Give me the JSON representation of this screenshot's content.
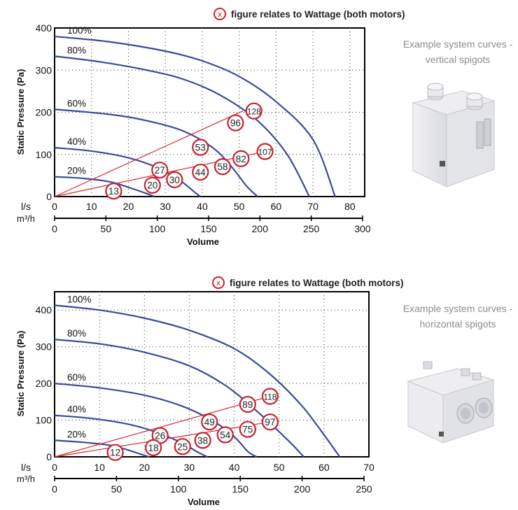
{
  "chart_data": [
    {
      "type": "line",
      "legend_symbol": "x",
      "legend_text": "figure relates to Wattage (both motors)",
      "ylabel": "Static Pressure (Pa)",
      "xlabel": "Volume",
      "x_unit_primary": "l/s",
      "x_unit_secondary": "m³/h",
      "xlim": [
        0,
        84
      ],
      "ylim": [
        0,
        400
      ],
      "x_ticks": [
        "0",
        "10",
        "20",
        "30",
        "40",
        "50",
        "60",
        "70",
        "80"
      ],
      "y_ticks": [
        "0",
        "100",
        "200",
        "300",
        "400"
      ],
      "x2_ticks": [
        "0",
        "50",
        "100",
        "150",
        "200",
        "250",
        "300"
      ],
      "grid": "dotted",
      "series_color": "#3a4a9a",
      "series": [
        {
          "name": "100%",
          "points": [
            [
              0,
              380
            ],
            [
              15,
              367
            ],
            [
              30,
              345
            ],
            [
              40,
              322
            ],
            [
              50,
              285
            ],
            [
              60,
              225
            ],
            [
              70,
              135
            ],
            [
              76,
              0
            ]
          ]
        },
        {
          "name": "80%",
          "points": [
            [
              0,
              333
            ],
            [
              12,
              320
            ],
            [
              25,
              300
            ],
            [
              35,
              278
            ],
            [
              45,
              240
            ],
            [
              55,
              180
            ],
            [
              63,
              100
            ],
            [
              69,
              0
            ]
          ]
        },
        {
          "name": "60%",
          "points": [
            [
              0,
              207
            ],
            [
              15,
              195
            ],
            [
              25,
              180
            ],
            [
              35,
              155
            ],
            [
              43,
              115
            ],
            [
              48,
              70
            ],
            [
              52,
              25
            ],
            [
              55,
              0
            ]
          ]
        },
        {
          "name": "40%",
          "points": [
            [
              0,
              116
            ],
            [
              10,
              108
            ],
            [
              20,
              92
            ],
            [
              28,
              68
            ],
            [
              34,
              38
            ],
            [
              38,
              10
            ],
            [
              39.5,
              0
            ]
          ]
        },
        {
          "name": "20%",
          "points": [
            [
              0,
              47
            ],
            [
              8,
              43
            ],
            [
              15,
              35
            ],
            [
              20,
              22
            ],
            [
              25,
              7
            ],
            [
              27,
              0
            ]
          ]
        }
      ],
      "wattage_lines": [
        {
          "from": [
            0,
            0
          ],
          "to": [
            51,
            203
          ]
        },
        {
          "from": [
            0,
            0
          ],
          "to": [
            57,
            107
          ]
        }
      ],
      "wattage_markers": [
        {
          "label": "13",
          "x": 16,
          "y": 13
        },
        {
          "label": "27",
          "x": 28.5,
          "y": 63
        },
        {
          "label": "20",
          "x": 26.5,
          "y": 27
        },
        {
          "label": "30",
          "x": 32.5,
          "y": 40
        },
        {
          "label": "53",
          "x": 39.5,
          "y": 117
        },
        {
          "label": "44",
          "x": 39.5,
          "y": 58
        },
        {
          "label": "96",
          "x": 49,
          "y": 175
        },
        {
          "label": "128",
          "x": 54,
          "y": 203
        },
        {
          "label": "58",
          "x": 45.5,
          "y": 71
        },
        {
          "label": "82",
          "x": 50.5,
          "y": 90
        },
        {
          "label": "107",
          "x": 57,
          "y": 107
        }
      ],
      "side_caption": [
        "Example system curves -",
        "vertical spigots"
      ]
    },
    {
      "type": "line",
      "legend_symbol": "x",
      "legend_text": "figure relates to Wattage (both motors)",
      "ylabel": "Static Pressure (Pa)",
      "xlabel": "Volume",
      "x_unit_primary": "l/s",
      "x_unit_secondary": "m³/h",
      "xlim": [
        0,
        70
      ],
      "ylim": [
        0,
        450
      ],
      "x_ticks": [
        "0",
        "10",
        "20",
        "30",
        "40",
        "50",
        "60",
        "70"
      ],
      "y_ticks": [
        "0",
        "100",
        "200",
        "300",
        "400"
      ],
      "x2_ticks": [
        "0",
        "50",
        "100",
        "150",
        "200",
        "250"
      ],
      "grid": "dotted",
      "series_color": "#3a4a9a",
      "series": [
        {
          "name": "100%",
          "points": [
            [
              0,
              413
            ],
            [
              10,
              400
            ],
            [
              20,
              378
            ],
            [
              30,
              345
            ],
            [
              40,
              295
            ],
            [
              48,
              225
            ],
            [
              55,
              140
            ],
            [
              60,
              60
            ],
            [
              63.5,
              0
            ]
          ]
        },
        {
          "name": "80%",
          "points": [
            [
              0,
              320
            ],
            [
              10,
              308
            ],
            [
              20,
              285
            ],
            [
              30,
              248
            ],
            [
              38,
              195
            ],
            [
              45,
              125
            ],
            [
              52,
              45
            ],
            [
              55.5,
              0
            ]
          ]
        },
        {
          "name": "60%",
          "points": [
            [
              0,
              200
            ],
            [
              10,
              188
            ],
            [
              20,
              168
            ],
            [
              28,
              140
            ],
            [
              35,
              100
            ],
            [
              40,
              55
            ],
            [
              43,
              15
            ],
            [
              45,
              0
            ]
          ]
        },
        {
          "name": "40%",
          "points": [
            [
              0,
              113
            ],
            [
              8,
              105
            ],
            [
              16,
              90
            ],
            [
              22,
              70
            ],
            [
              28,
              40
            ],
            [
              32,
              12
            ],
            [
              34,
              0
            ]
          ]
        },
        {
          "name": "20%",
          "points": [
            [
              0,
              45
            ],
            [
              6,
              40
            ],
            [
              12,
              32
            ],
            [
              16,
              20
            ],
            [
              19,
              8
            ],
            [
              21,
              0
            ]
          ]
        }
      ],
      "wattage_lines": [
        {
          "from": [
            0,
            0
          ],
          "to": [
            48,
            165
          ]
        },
        {
          "from": [
            0,
            0
          ],
          "to": [
            48,
            95
          ]
        }
      ],
      "wattage_markers": [
        {
          "label": "12",
          "x": 13.5,
          "y": 12
        },
        {
          "label": "26",
          "x": 23.5,
          "y": 58
        },
        {
          "label": "18",
          "x": 22,
          "y": 25
        },
        {
          "label": "25",
          "x": 28.5,
          "y": 28
        },
        {
          "label": "49",
          "x": 34.5,
          "y": 95
        },
        {
          "label": "38",
          "x": 33,
          "y": 45
        },
        {
          "label": "89",
          "x": 43,
          "y": 143
        },
        {
          "label": "118",
          "x": 48,
          "y": 165
        },
        {
          "label": "54",
          "x": 38,
          "y": 60
        },
        {
          "label": "75",
          "x": 43,
          "y": 75
        },
        {
          "label": "97",
          "x": 48,
          "y": 95
        }
      ],
      "side_caption": [
        "Example system curves -",
        "horizontal spigots"
      ]
    }
  ]
}
